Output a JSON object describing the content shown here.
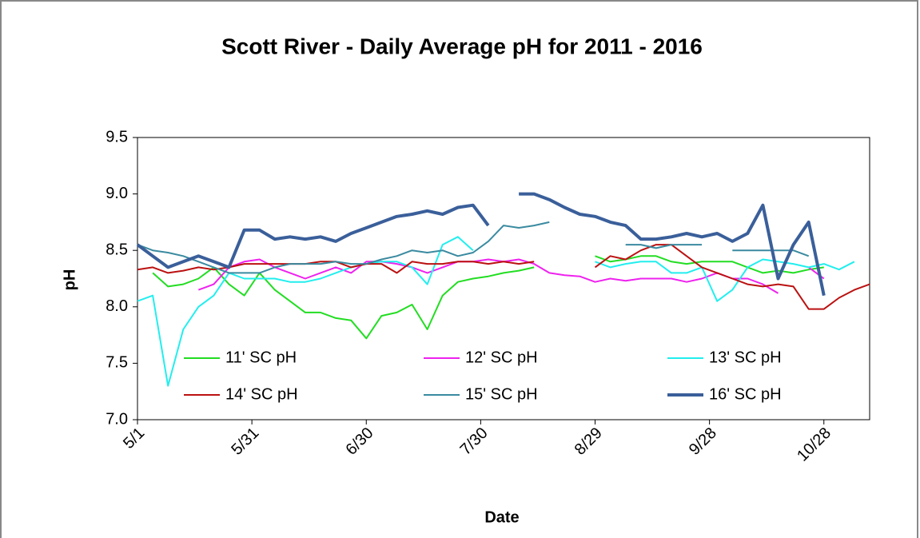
{
  "chart_data": {
    "type": "line",
    "title": "Scott River - Daily Average pH for 2011 - 2016",
    "x_label": "Date",
    "y_label": "pH",
    "x": [
      0,
      4,
      8,
      12,
      16,
      20,
      24,
      28,
      32,
      36,
      40,
      44,
      48,
      52,
      56,
      60,
      64,
      68,
      72,
      76,
      80,
      84,
      88,
      92,
      96,
      100,
      104,
      108,
      112,
      116,
      120,
      124,
      128,
      132,
      136,
      140,
      144,
      148,
      152,
      156,
      160,
      164,
      168,
      172,
      176,
      180,
      184,
      188,
      192
    ],
    "xlim": [
      0,
      192
    ],
    "xticks": [
      {
        "value": 0,
        "label": "5/1"
      },
      {
        "value": 30,
        "label": "5/31"
      },
      {
        "value": 60,
        "label": "6/30"
      },
      {
        "value": 90,
        "label": "7/30"
      },
      {
        "value": 120,
        "label": "8/29"
      },
      {
        "value": 150,
        "label": "9/28"
      },
      {
        "value": 180,
        "label": "10/28"
      }
    ],
    "ylim": [
      7.0,
      9.5
    ],
    "yticks": [
      {
        "value": 7.0,
        "label": "7.0"
      },
      {
        "value": 7.5,
        "label": "7.5"
      },
      {
        "value": 8.0,
        "label": "8.0"
      },
      {
        "value": 8.5,
        "label": "8.5"
      },
      {
        "value": 9.0,
        "label": "9.0"
      },
      {
        "value": 9.5,
        "label": "9.5"
      }
    ],
    "series": [
      {
        "name": "11' SC pH",
        "color": "#22dd22",
        "width": 2,
        "values": [
          null,
          8.3,
          8.18,
          8.2,
          8.25,
          8.35,
          8.2,
          8.1,
          8.3,
          8.15,
          8.05,
          7.95,
          7.95,
          7.9,
          7.88,
          7.72,
          7.92,
          7.95,
          8.02,
          7.8,
          8.1,
          8.22,
          8.25,
          8.27,
          8.3,
          8.32,
          8.35,
          null,
          null,
          null,
          8.45,
          8.4,
          8.42,
          8.45,
          8.45,
          8.4,
          8.38,
          8.4,
          8.4,
          8.4,
          8.35,
          8.3,
          8.32,
          8.3,
          8.33,
          8.35,
          null,
          null,
          null
        ]
      },
      {
        "name": "12' SC pH",
        "color": "#ee22ee",
        "width": 2,
        "values": [
          null,
          null,
          null,
          null,
          8.15,
          8.2,
          8.35,
          8.4,
          8.42,
          8.35,
          8.3,
          8.25,
          8.3,
          8.35,
          8.3,
          8.4,
          8.4,
          8.38,
          8.35,
          8.3,
          8.35,
          8.4,
          8.4,
          8.42,
          8.4,
          8.42,
          8.38,
          8.3,
          8.28,
          8.27,
          8.22,
          8.25,
          8.23,
          8.25,
          8.25,
          8.25,
          8.22,
          8.25,
          8.3,
          8.25,
          8.25,
          8.2,
          8.12,
          null,
          8.35,
          8.25,
          null,
          null,
          null
        ]
      },
      {
        "name": "13' SC pH",
        "color": "#22eeee",
        "width": 2,
        "values": [
          8.05,
          8.1,
          7.3,
          7.8,
          8.0,
          8.1,
          8.3,
          8.25,
          8.25,
          8.25,
          8.22,
          8.22,
          8.25,
          8.3,
          8.35,
          8.38,
          8.4,
          8.4,
          8.35,
          8.2,
          8.55,
          8.62,
          8.5,
          null,
          null,
          null,
          null,
          null,
          null,
          null,
          8.4,
          8.35,
          8.38,
          8.4,
          8.4,
          8.3,
          8.3,
          8.35,
          8.05,
          8.15,
          8.35,
          8.42,
          8.4,
          8.38,
          8.35,
          8.38,
          8.33,
          8.4,
          null
        ]
      },
      {
        "name": "14' SC pH",
        "color": "#bb1111",
        "width": 2,
        "values": [
          8.33,
          8.35,
          8.3,
          8.32,
          8.35,
          8.33,
          8.35,
          8.38,
          8.38,
          8.38,
          8.38,
          8.38,
          8.4,
          8.4,
          8.35,
          8.38,
          8.38,
          8.3,
          8.4,
          8.38,
          8.38,
          8.4,
          8.4,
          8.38,
          8.4,
          8.38,
          8.4,
          null,
          null,
          null,
          8.35,
          8.45,
          8.42,
          8.5,
          8.55,
          8.55,
          8.45,
          8.35,
          8.3,
          8.25,
          8.2,
          8.18,
          8.2,
          8.18,
          7.98,
          7.98,
          8.08,
          8.15,
          8.2
        ]
      },
      {
        "name": "15' SC pH",
        "color": "#3a8aa0",
        "width": 2,
        "values": [
          8.55,
          8.5,
          8.48,
          8.45,
          8.4,
          8.35,
          8.3,
          8.3,
          8.3,
          8.35,
          8.38,
          8.38,
          8.38,
          8.4,
          8.38,
          8.38,
          8.42,
          8.45,
          8.5,
          8.48,
          8.5,
          8.45,
          8.48,
          8.58,
          8.72,
          8.7,
          8.72,
          8.75,
          null,
          null,
          null,
          null,
          8.55,
          8.55,
          8.52,
          8.55,
          8.55,
          8.55,
          null,
          8.5,
          8.5,
          8.5,
          8.5,
          8.5,
          8.45,
          null,
          null,
          null,
          null
        ]
      },
      {
        "name": "16' SC pH",
        "color": "#3a5f9a",
        "width": 4,
        "values": [
          8.55,
          8.45,
          8.35,
          8.4,
          8.45,
          8.4,
          8.35,
          8.68,
          8.68,
          8.6,
          8.62,
          8.6,
          8.62,
          8.58,
          8.65,
          8.7,
          8.75,
          8.8,
          8.82,
          8.85,
          8.82,
          8.88,
          8.9,
          8.72,
          null,
          9.0,
          9.0,
          8.95,
          8.88,
          8.82,
          8.8,
          8.75,
          8.72,
          8.6,
          8.6,
          8.62,
          8.65,
          8.62,
          8.65,
          8.58,
          8.65,
          8.9,
          8.25,
          8.55,
          8.75,
          8.1,
          null,
          null,
          null
        ]
      }
    ]
  }
}
